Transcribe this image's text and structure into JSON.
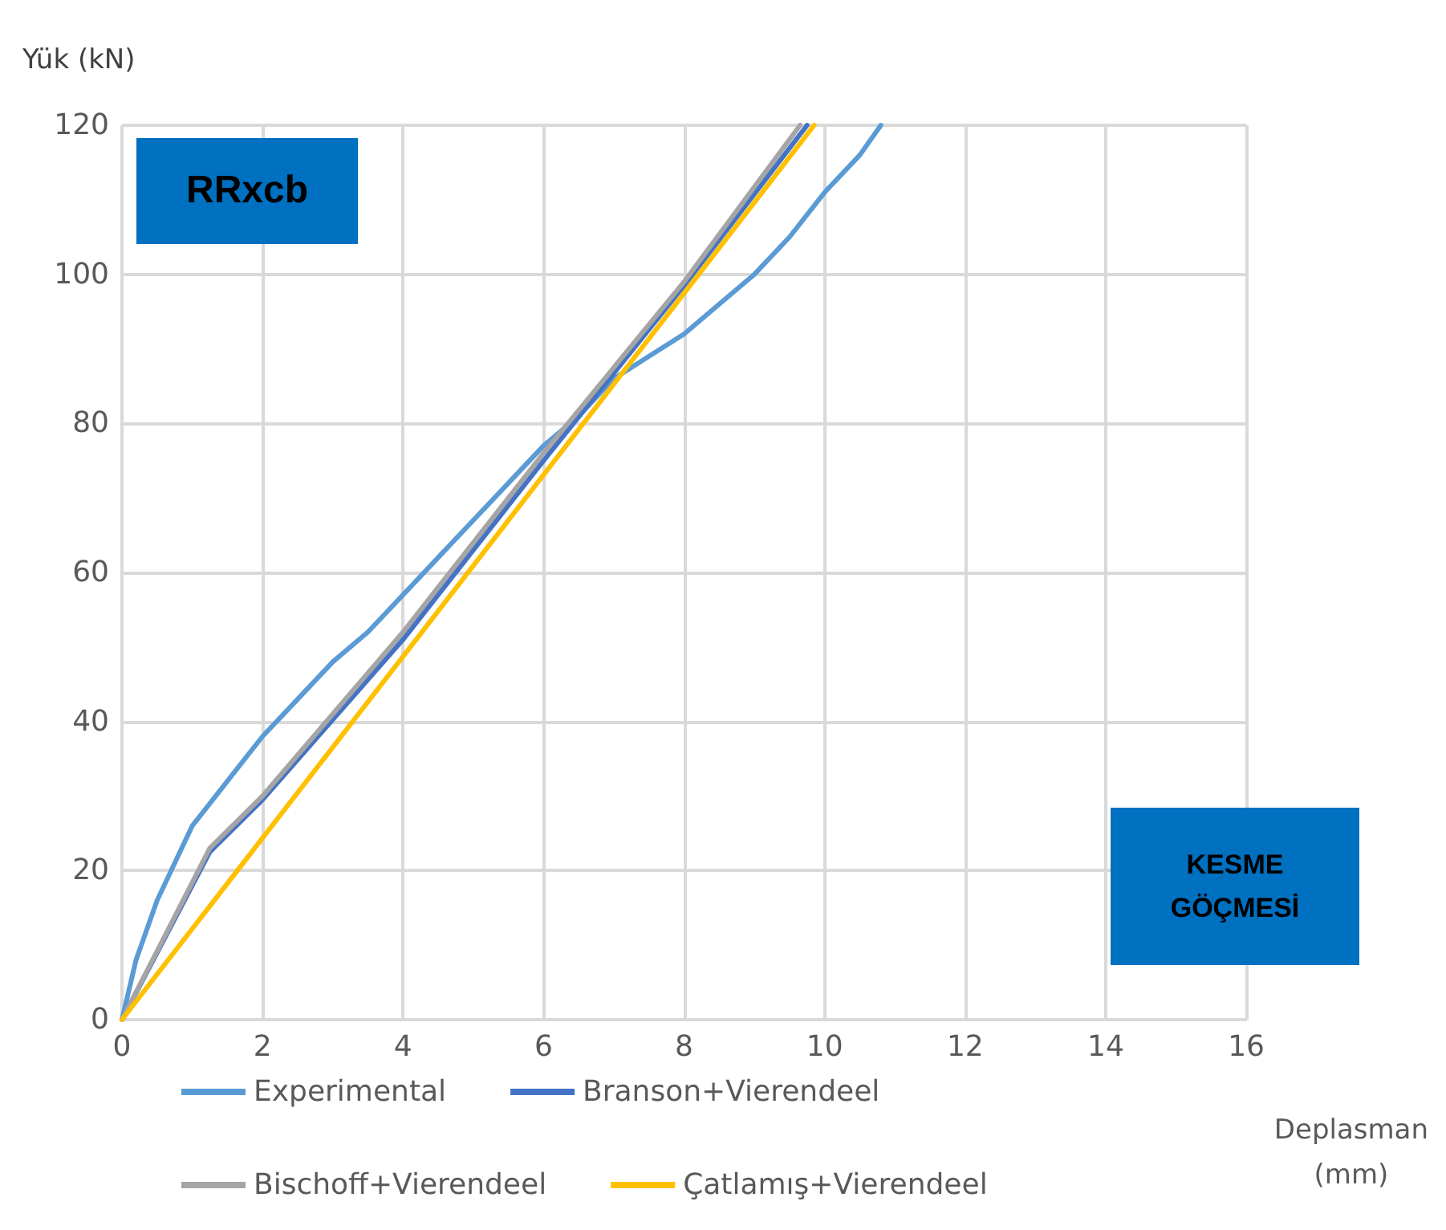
{
  "chart_data": {
    "type": "line",
    "ylabel": "Yük (kN)",
    "xlabel": "Deplasman\n(mm)",
    "annotations": [
      "RRxcb",
      "KESME\nGÖÇMESİ"
    ],
    "xlim": [
      0,
      16
    ],
    "xticks": [
      0,
      2,
      4,
      6,
      8,
      10,
      12,
      14,
      16
    ],
    "ylim": [
      0,
      120
    ],
    "yticks": [
      0,
      20,
      40,
      60,
      80,
      100,
      120
    ],
    "grid": true,
    "legend": "bottom",
    "marker": "none",
    "line_style": "solid",
    "series": [
      {
        "name": "Experimental",
        "color": "#5b9bd5",
        "x": [
          0,
          0.2,
          0.5,
          0.8,
          1,
          1.5,
          2,
          2.5,
          3,
          3.5,
          4,
          4.5,
          5,
          5.5,
          6,
          6.5,
          7,
          7.5,
          8,
          8.5,
          9,
          9.5,
          10,
          10.5,
          10.8
        ],
        "values": [
          0,
          8,
          16,
          22,
          26,
          32,
          38,
          43,
          48,
          52,
          57,
          62,
          67,
          72,
          77,
          81,
          86,
          89,
          92,
          96,
          100,
          105,
          111,
          116,
          120
        ]
      },
      {
        "name": "Branson+Vierendeel",
        "color": "#4472c4",
        "x": [
          0,
          1.25,
          2,
          4,
          6,
          8,
          9.75
        ],
        "values": [
          0,
          22.5,
          29.5,
          51,
          75,
          98.5,
          120
        ]
      },
      {
        "name": "Bischoff+Vierendeel",
        "color": "#a5a5a5",
        "x": [
          0,
          1.25,
          2,
          4,
          6,
          8,
          9.65
        ],
        "values": [
          0,
          23,
          30,
          52,
          76,
          99,
          120
        ]
      },
      {
        "name": "Çatlamış+Vierendeel",
        "color": "#ffc000",
        "x": [
          0,
          9.85
        ],
        "values": [
          0,
          120
        ]
      }
    ]
  }
}
